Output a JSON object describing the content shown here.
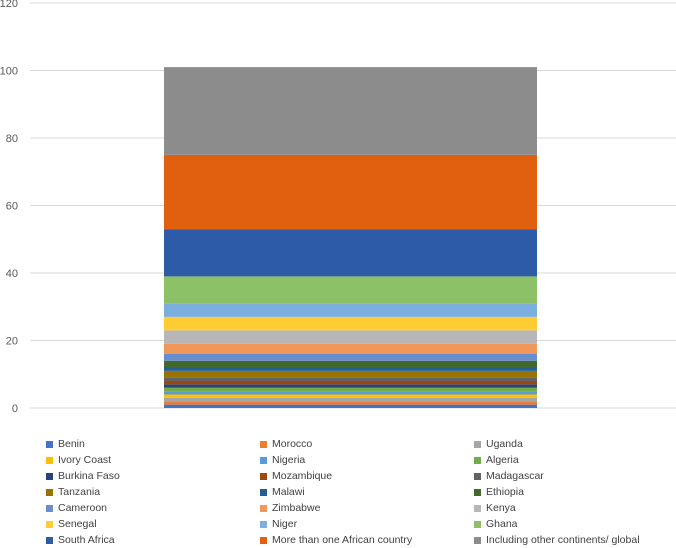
{
  "chart_data": {
    "type": "bar",
    "stacked": true,
    "categories": [
      ""
    ],
    "ylim": [
      0,
      120
    ],
    "yticks": [
      "0",
      "20",
      "40",
      "60",
      "80",
      "100",
      "120"
    ],
    "grid": true,
    "legend_position": "bottom",
    "series": [
      {
        "name": "Benin",
        "values": [
          1
        ],
        "color": "#4472C4"
      },
      {
        "name": "Morocco",
        "values": [
          1
        ],
        "color": "#ED7D31"
      },
      {
        "name": "Uganda",
        "values": [
          1
        ],
        "color": "#A5A5A5"
      },
      {
        "name": "Ivory Coast",
        "values": [
          1
        ],
        "color": "#FFC000"
      },
      {
        "name": "Nigeria",
        "values": [
          1
        ],
        "color": "#5B9BD5"
      },
      {
        "name": "Algeria",
        "values": [
          1
        ],
        "color": "#70AD47"
      },
      {
        "name": "Burkina Faso",
        "values": [
          1
        ],
        "color": "#264478"
      },
      {
        "name": "Mozambique",
        "values": [
          1
        ],
        "color": "#9E480E"
      },
      {
        "name": "Madagascar",
        "values": [
          1
        ],
        "color": "#636363"
      },
      {
        "name": "Tanzania",
        "values": [
          2
        ],
        "color": "#997300"
      },
      {
        "name": "Malawi",
        "values": [
          1
        ],
        "color": "#255E91"
      },
      {
        "name": "Ethiopia",
        "values": [
          2
        ],
        "color": "#43682B"
      },
      {
        "name": "Cameroon",
        "values": [
          2
        ],
        "color": "#698ED0"
      },
      {
        "name": "Zimbabwe",
        "values": [
          3
        ],
        "color": "#F1975A"
      },
      {
        "name": "Kenya",
        "values": [
          4
        ],
        "color": "#B7B7B7"
      },
      {
        "name": "Senegal",
        "values": [
          4
        ],
        "color": "#FFCD33"
      },
      {
        "name": "Niger",
        "values": [
          4
        ],
        "color": "#7CAFDD"
      },
      {
        "name": "Ghana",
        "values": [
          8
        ],
        "color": "#8CC168"
      },
      {
        "name": "South Africa",
        "values": [
          14
        ],
        "color": "#2E5BA8"
      },
      {
        "name": "More than one African country",
        "values": [
          22
        ],
        "color": "#E0600F"
      },
      {
        "name": "Including other continents/ global",
        "values": [
          26
        ],
        "color": "#8C8C8C"
      }
    ]
  }
}
